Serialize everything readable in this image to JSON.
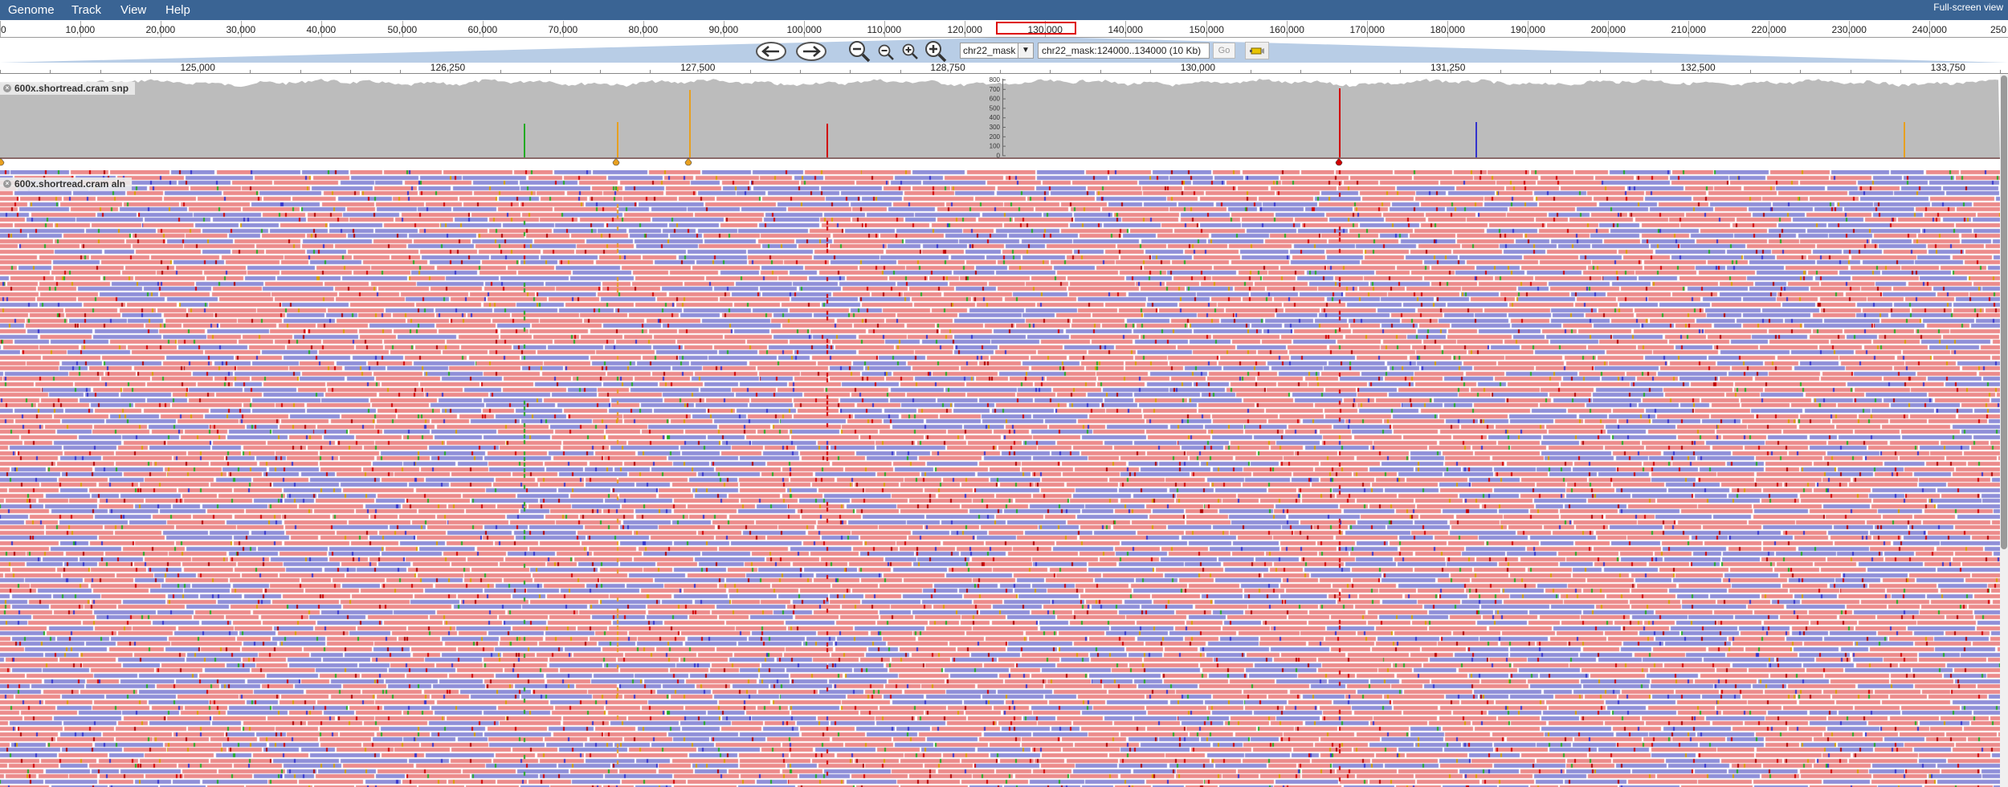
{
  "menu": {
    "genome": "Genome",
    "track": "Track",
    "view": "View",
    "help": "Help",
    "fullscreen": "Full-screen view"
  },
  "overview": {
    "labels": [
      "0",
      "10,000",
      "20,000",
      "30,000",
      "40,000",
      "50,000",
      "60,000",
      "70,000",
      "80,000",
      "90,000",
      "100,000",
      "110,000",
      "120,000",
      "130,000",
      "140,000",
      "150,000",
      "160,000",
      "170,000",
      "180,000",
      "190,000",
      "200,000",
      "210,000",
      "220,000",
      "230,000",
      "240,000",
      "250"
    ],
    "highlight_start": 124000,
    "highlight_end": 134000
  },
  "navigation": {
    "ref_seq": "chr22_mask",
    "location": "chr22_mask:124000..134000 (10 Kb)",
    "go_label": "Go",
    "icons": [
      "arrow-left-icon",
      "arrow-right-icon",
      "zoom-out-large-icon",
      "zoom-out-icon",
      "zoom-in-icon",
      "zoom-in-large-icon",
      "highlighter-icon"
    ]
  },
  "detail_ruler": {
    "labels": [
      "125,000",
      "126,250",
      "127,500",
      "128,750",
      "130,000",
      "131,250",
      "132,500",
      "133,750"
    ]
  },
  "tracks": {
    "snp": {
      "label": "600x.shortread.cram snp",
      "y_ticks": [
        "800",
        "700",
        "600",
        "500",
        "400",
        "300",
        "200",
        "100",
        "0"
      ]
    },
    "alignments": {
      "label": "600x.shortread.cram aln"
    }
  },
  "colors": {
    "menubar": "#3a6494",
    "coverage": "#bcbcbc",
    "forward_read": "#ec8b8b",
    "reverse_read": "#8f8fd8",
    "snp_red": "#d00000",
    "snp_orange": "#e8a020",
    "snp_green": "#22aa22",
    "snp_blue": "#3333cc"
  }
}
